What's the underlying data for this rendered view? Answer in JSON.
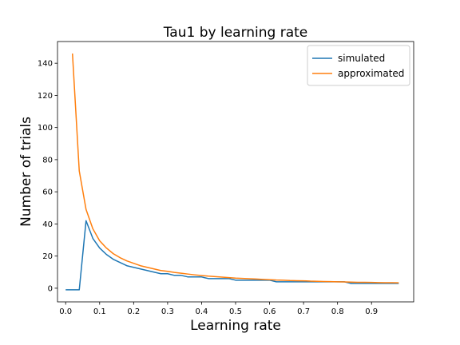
{
  "chart_data": {
    "type": "line",
    "title": "Tau1 by learning rate",
    "xlabel": "Learning rate",
    "ylabel": "Number of trials",
    "xlim": [
      -0.024,
      1.024
    ],
    "ylim": [
      -8.5,
      153.5
    ],
    "xticks": [
      0.0,
      0.1,
      0.2,
      0.3,
      0.4,
      0.5,
      0.6,
      0.7,
      0.8,
      0.9
    ],
    "xtick_labels": [
      "0.0",
      "0.1",
      "0.2",
      "0.3",
      "0.4",
      "0.5",
      "0.6",
      "0.7",
      "0.8",
      "0.9"
    ],
    "yticks": [
      0,
      20,
      40,
      60,
      80,
      100,
      120,
      140
    ],
    "ytick_labels": [
      "0",
      "20",
      "40",
      "60",
      "80",
      "100",
      "120",
      "140"
    ],
    "grid": false,
    "legend": "top-right",
    "series": [
      {
        "name": "simulated",
        "color": "#1f77b4",
        "points": [
          [
            0.0,
            -1
          ],
          [
            0.02,
            -1
          ],
          [
            0.04,
            -1
          ],
          [
            0.06,
            42
          ],
          [
            0.08,
            31
          ],
          [
            0.1,
            25
          ],
          [
            0.12,
            21
          ],
          [
            0.14,
            18
          ],
          [
            0.16,
            16
          ],
          [
            0.18,
            14
          ],
          [
            0.2,
            13
          ],
          [
            0.22,
            12
          ],
          [
            0.24,
            11
          ],
          [
            0.26,
            10
          ],
          [
            0.28,
            9
          ],
          [
            0.3,
            9
          ],
          [
            0.32,
            8
          ],
          [
            0.34,
            8
          ],
          [
            0.36,
            7
          ],
          [
            0.38,
            7
          ],
          [
            0.4,
            7
          ],
          [
            0.42,
            6
          ],
          [
            0.44,
            6
          ],
          [
            0.46,
            6
          ],
          [
            0.48,
            6
          ],
          [
            0.5,
            5
          ],
          [
            0.52,
            5
          ],
          [
            0.54,
            5
          ],
          [
            0.56,
            5
          ],
          [
            0.58,
            5
          ],
          [
            0.6,
            5
          ],
          [
            0.62,
            4
          ],
          [
            0.64,
            4
          ],
          [
            0.66,
            4
          ],
          [
            0.68,
            4
          ],
          [
            0.7,
            4
          ],
          [
            0.72,
            4
          ],
          [
            0.74,
            4
          ],
          [
            0.76,
            4
          ],
          [
            0.78,
            4
          ],
          [
            0.8,
            4
          ],
          [
            0.82,
            4
          ],
          [
            0.84,
            3
          ],
          [
            0.86,
            3
          ],
          [
            0.88,
            3
          ],
          [
            0.9,
            3
          ],
          [
            0.92,
            3
          ],
          [
            0.94,
            3
          ],
          [
            0.96,
            3
          ],
          [
            0.98,
            3
          ]
        ]
      },
      {
        "name": "approximated",
        "color": "#ff7f0e",
        "points": [
          [
            0.02,
            146
          ],
          [
            0.04,
            73
          ],
          [
            0.06,
            49
          ],
          [
            0.08,
            37
          ],
          [
            0.1,
            29.5
          ],
          [
            0.12,
            25
          ],
          [
            0.14,
            21.5
          ],
          [
            0.16,
            19
          ],
          [
            0.18,
            17
          ],
          [
            0.2,
            15.5
          ],
          [
            0.22,
            14
          ],
          [
            0.24,
            13
          ],
          [
            0.26,
            12
          ],
          [
            0.28,
            11
          ],
          [
            0.3,
            10.5
          ],
          [
            0.32,
            9.8
          ],
          [
            0.34,
            9.3
          ],
          [
            0.36,
            8.8
          ],
          [
            0.38,
            8.3
          ],
          [
            0.4,
            7.9
          ],
          [
            0.42,
            7.5
          ],
          [
            0.44,
            7.2
          ],
          [
            0.46,
            6.9
          ],
          [
            0.48,
            6.6
          ],
          [
            0.5,
            6.3
          ],
          [
            0.52,
            6.1
          ],
          [
            0.54,
            5.9
          ],
          [
            0.56,
            5.7
          ],
          [
            0.58,
            5.5
          ],
          [
            0.6,
            5.3
          ],
          [
            0.62,
            5.1
          ],
          [
            0.64,
            5.0
          ],
          [
            0.66,
            4.8
          ],
          [
            0.68,
            4.7
          ],
          [
            0.7,
            4.6
          ],
          [
            0.72,
            4.4
          ],
          [
            0.74,
            4.3
          ],
          [
            0.76,
            4.2
          ],
          [
            0.78,
            4.1
          ],
          [
            0.8,
            4.0
          ],
          [
            0.82,
            3.9
          ],
          [
            0.84,
            3.8
          ],
          [
            0.86,
            3.7
          ],
          [
            0.88,
            3.65
          ],
          [
            0.9,
            3.6
          ],
          [
            0.92,
            3.5
          ],
          [
            0.94,
            3.45
          ],
          [
            0.96,
            3.4
          ],
          [
            0.98,
            3.35
          ]
        ]
      }
    ]
  }
}
